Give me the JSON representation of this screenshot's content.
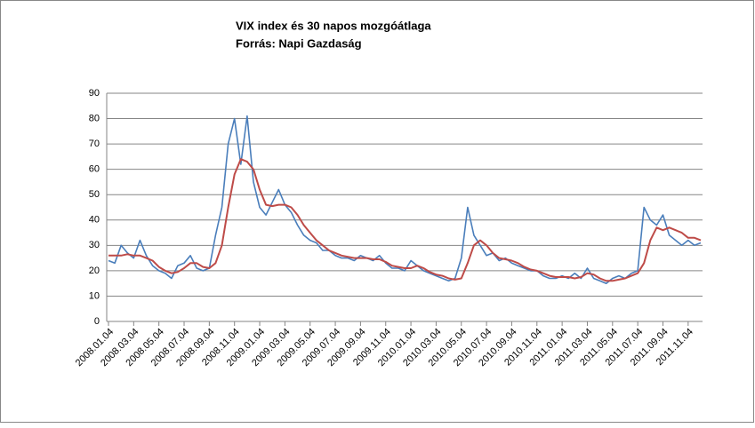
{
  "chart_data": {
    "type": "line",
    "title": "VIX index és 30 napos mozgóátlaga",
    "subtitle": "Forrás: Napi Gazdaság",
    "categories": [
      "2008.01.04",
      null,
      null,
      null,
      "2008.03.04",
      null,
      null,
      null,
      "2008.05.04",
      null,
      null,
      null,
      "2008.07.04",
      null,
      null,
      null,
      "2008.09.04",
      null,
      null,
      null,
      "2008.11.04",
      null,
      null,
      null,
      "2009.01.04",
      null,
      null,
      null,
      "2009.03.04",
      null,
      null,
      null,
      "2009.05.04",
      null,
      null,
      null,
      "2009.07.04",
      null,
      null,
      null,
      "2009.09.04",
      null,
      null,
      null,
      "2009.11.04",
      null,
      null,
      null,
      "2010.01.04",
      null,
      null,
      null,
      "2010.03.04",
      null,
      null,
      null,
      "2010.05.04",
      null,
      null,
      null,
      "2010.07.04",
      null,
      null,
      null,
      "2010.09.04",
      null,
      null,
      null,
      "2010.11.04",
      null,
      null,
      null,
      "2011.01.04",
      null,
      null,
      null,
      "2011.03.04",
      null,
      null,
      null,
      "2011.05.04",
      null,
      null,
      null,
      "2011.07.04",
      null,
      null,
      null,
      "2011.09.04",
      null,
      null,
      null,
      "2011.11.04",
      null,
      null
    ],
    "series": [
      {
        "color": "#4a7ebb",
        "values": [
          24,
          23,
          30,
          27,
          25,
          32,
          26,
          22,
          20,
          19,
          17,
          22,
          23,
          26,
          21,
          20,
          21,
          34,
          45,
          70,
          80,
          62,
          81,
          55,
          45,
          42,
          47,
          52,
          46,
          43,
          38,
          34,
          32,
          31,
          28,
          28,
          26,
          25,
          25,
          24,
          26,
          25,
          24,
          26,
          23,
          21,
          21,
          20,
          24,
          22,
          20,
          19,
          18,
          17,
          16,
          17,
          25,
          45,
          34,
          30,
          26,
          27,
          24,
          25,
          23,
          22,
          21,
          20,
          20,
          18,
          17,
          17,
          18,
          17,
          19,
          17,
          21,
          17,
          16,
          15,
          17,
          18,
          17,
          19,
          20,
          45,
          40,
          38,
          42,
          34,
          32,
          30,
          32,
          30,
          31
        ]
      },
      {
        "color": "#be4b48",
        "values": [
          26,
          26,
          26,
          26.5,
          26,
          26,
          25,
          24,
          21.5,
          20,
          19,
          19.5,
          21,
          23,
          23,
          21.5,
          21,
          23,
          30,
          45,
          58,
          64,
          63,
          60,
          52,
          46,
          45.5,
          46,
          46,
          45,
          42,
          38,
          35,
          32,
          30,
          28,
          27,
          26,
          25.5,
          25,
          25,
          25,
          24.5,
          24.5,
          23.5,
          22,
          21.5,
          21,
          21,
          22,
          21,
          19.5,
          18.5,
          18,
          17,
          16.5,
          17,
          23,
          30,
          32,
          30,
          27,
          25,
          24.5,
          24,
          23,
          21.5,
          20.5,
          20,
          19,
          18,
          17.5,
          17.5,
          17.5,
          17,
          17.5,
          19,
          18.5,
          17,
          16,
          16,
          16.5,
          17,
          18,
          19,
          23,
          32,
          37,
          36,
          37,
          36,
          35,
          33,
          33,
          32
        ]
      }
    ],
    "ylim": [
      0,
      90
    ],
    "yticks": [
      0,
      10,
      20,
      30,
      40,
      50,
      60,
      70,
      80,
      90
    ],
    "grid": true
  }
}
